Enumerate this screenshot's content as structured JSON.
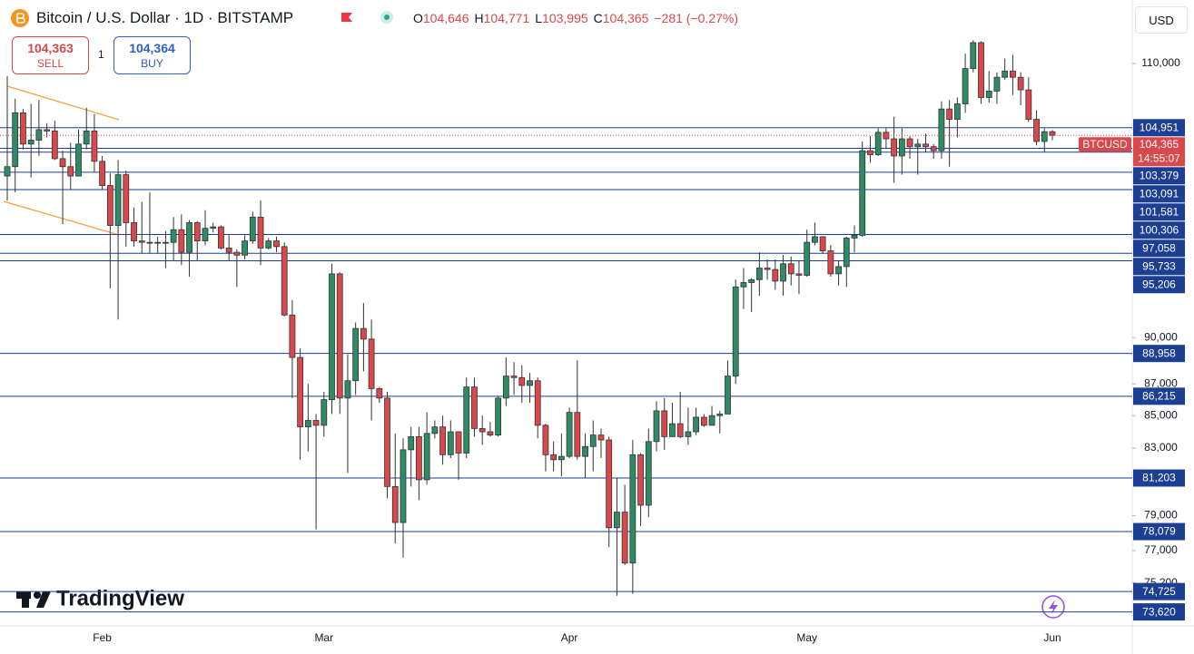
{
  "header": {
    "title": "Bitcoin / U.S. Dollar · 1D · BITSTAMP",
    "ohlc": [
      {
        "key": "O",
        "value": "104,646"
      },
      {
        "key": "H",
        "value": "104,771"
      },
      {
        "key": "L",
        "value": "103,995"
      },
      {
        "key": "C",
        "value": "104,365"
      }
    ],
    "change": "−281 (−0.27%)"
  },
  "trade": {
    "sell": {
      "price": "104,363",
      "label": "SELL"
    },
    "quantity": "1",
    "buy": {
      "price": "104,364",
      "label": "BUY"
    }
  },
  "currency": "USD",
  "brand": "TradingView",
  "chart_data": {
    "type": "candlestick",
    "log_scale": true,
    "up_color": "#2e8b66",
    "down_color": "#d9484b",
    "level_color": "#1c3f94",
    "categories": [
      null,
      null,
      null,
      null,
      null,
      null,
      null,
      null,
      null,
      null,
      null,
      null,
      "Feb",
      null,
      null,
      null,
      null,
      null,
      null,
      null,
      null,
      null,
      null,
      null,
      null,
      null,
      null,
      null,
      null,
      null,
      null,
      null,
      null,
      null,
      null,
      null,
      null,
      null,
      null,
      null,
      "Mar",
      null,
      null,
      null,
      null,
      null,
      null,
      null,
      null,
      null,
      null,
      null,
      null,
      null,
      null,
      null,
      null,
      null,
      null,
      null,
      null,
      null,
      null,
      null,
      null,
      null,
      null,
      null,
      null,
      null,
      null,
      "Apr",
      null,
      null,
      null,
      null,
      null,
      null,
      null,
      null,
      null,
      null,
      null,
      null,
      null,
      null,
      null,
      null,
      null,
      null,
      null,
      null,
      null,
      null,
      null,
      null,
      null,
      null,
      null,
      null,
      null,
      "May",
      null,
      null,
      null,
      null,
      null,
      null,
      null,
      null,
      null,
      null,
      null,
      null,
      null,
      null,
      null,
      null,
      null,
      null,
      null,
      null,
      null,
      null,
      null,
      null,
      null,
      null,
      null,
      null,
      null,
      null,
      "Jun"
    ],
    "open": [
      101300,
      102000,
      106100,
      103700,
      104000,
      104800,
      104700,
      102600,
      102000,
      101300,
      103700,
      104700,
      102400,
      100600,
      97700,
      101400,
      97900,
      96600,
      96500,
      96500,
      96500,
      96500,
      97400,
      95800,
      97900,
      96600,
      97500,
      97600,
      96100,
      95800,
      95600,
      96600,
      98300,
      96100,
      96600,
      96200,
      91500,
      88700,
      84300,
      84700,
      84400,
      86000,
      94300,
      86100,
      87200,
      90600,
      89900,
      86700,
      86100,
      80700,
      78600,
      82900,
      83700,
      81100,
      83900,
      84300,
      82600,
      84000,
      82700,
      86800,
      84200,
      84000,
      83800,
      86100,
      87500,
      87400,
      86900,
      87200,
      84400,
      82600,
      82300,
      82500,
      85200,
      82500,
      83100,
      83800,
      83500,
      78300,
      79200,
      76300,
      82600,
      79600,
      83400,
      85300,
      83700,
      84500,
      83700,
      84000,
      84900,
      84400,
      85000,
      85100,
      87500,
      93400,
      93700,
      93900,
      94700,
      94600,
      93800,
      95000,
      94300,
      94200,
      96500,
      96900,
      95900,
      94300,
      94800,
      96800,
      97000,
      103200,
      102900,
      104600,
      104100,
      102800,
      104100,
      103500,
      103700,
      103500,
      103200,
      106400,
      105600,
      106800,
      109600,
      111700,
      107300,
      107800,
      108900,
      109400,
      108900,
      107900,
      105600,
      103900,
      104646
    ],
    "high": [
      109000,
      107200,
      106400,
      106800,
      107100,
      105300,
      105500,
      103200,
      103800,
      104800,
      106500,
      106000,
      102800,
      101500,
      102500,
      101700,
      99000,
      99400,
      100100,
      96900,
      97300,
      98300,
      98500,
      98100,
      98000,
      98800,
      97900,
      97700,
      97000,
      96000,
      97000,
      98700,
      99500,
      96800,
      96900,
      96500,
      92500,
      89300,
      87000,
      85100,
      86500,
      95000,
      94400,
      88900,
      91000,
      92300,
      91200,
      86800,
      86500,
      83900,
      83600,
      84300,
      84300,
      85200,
      84700,
      85000,
      84700,
      84000,
      87400,
      87400,
      85000,
      84600,
      86200,
      88700,
      88400,
      88200,
      87700,
      87400,
      84500,
      83400,
      83900,
      85500,
      88500,
      83900,
      84700,
      84200,
      83700,
      81200,
      80800,
      83500,
      82700,
      84200,
      85900,
      86100,
      85800,
      86500,
      85500,
      85500,
      85100,
      85600,
      85300,
      88500,
      93900,
      94700,
      94000,
      95800,
      95300,
      95300,
      95600,
      95500,
      95200,
      97400,
      97900,
      96900,
      96300,
      95200,
      96900,
      97700,
      103900,
      104300,
      104900,
      104900,
      105800,
      104900,
      104300,
      104100,
      104500,
      103700,
      107000,
      107100,
      107300,
      110800,
      111900,
      111800,
      109400,
      109300,
      110400,
      110700,
      109300,
      108900,
      106300,
      104900,
      104771
    ],
    "low": [
      99500,
      100100,
      103300,
      101200,
      102800,
      104200,
      102500,
      97800,
      100300,
      101300,
      103300,
      101600,
      100300,
      93300,
      91200,
      96200,
      96200,
      95700,
      95700,
      95700,
      94700,
      95200,
      94900,
      94100,
      95200,
      96300,
      97200,
      96000,
      95200,
      93400,
      95300,
      96400,
      94900,
      96000,
      95800,
      91400,
      86100,
      82300,
      82800,
      78200,
      83700,
      85100,
      85100,
      81500,
      86300,
      87800,
      84700,
      85800,
      80000,
      77400,
      76600,
      80700,
      79900,
      80800,
      83600,
      82000,
      82400,
      81100,
      82400,
      83700,
      83200,
      83700,
      83700,
      85600,
      86300,
      85800,
      85800,
      83600,
      81600,
      81600,
      81300,
      82400,
      82300,
      81200,
      81600,
      82400,
      77200,
      74500,
      76200,
      74600,
      78400,
      78900,
      82800,
      82900,
      83700,
      83600,
      83200,
      83800,
      84300,
      84400,
      83900,
      85100,
      87000,
      91900,
      91700,
      92800,
      93900,
      93200,
      92800,
      93500,
      92900,
      94100,
      96300,
      95700,
      94100,
      93500,
      93400,
      95800,
      96900,
      102300,
      102800,
      103400,
      100800,
      101400,
      102600,
      101400,
      103100,
      102600,
      102600,
      102000,
      104200,
      106100,
      109300,
      106800,
      106900,
      106800,
      108700,
      107500,
      106700,
      105400,
      103600,
      103100,
      103995
    ],
    "close": [
      102000,
      106100,
      103700,
      104000,
      104800,
      104700,
      102600,
      102000,
      101300,
      103700,
      104700,
      102400,
      100600,
      97700,
      101400,
      97900,
      96600,
      96500,
      96500,
      96500,
      96500,
      97400,
      95800,
      97900,
      96600,
      97500,
      97600,
      96100,
      95800,
      95600,
      96600,
      98300,
      96100,
      96600,
      96200,
      91500,
      88700,
      84300,
      84700,
      84400,
      86000,
      94300,
      86100,
      87200,
      90600,
      89900,
      86700,
      86100,
      80700,
      78600,
      82900,
      83700,
      81100,
      83900,
      84300,
      82600,
      84000,
      82700,
      86800,
      84200,
      84000,
      83800,
      86100,
      87500,
      87400,
      86900,
      87200,
      84400,
      82600,
      82300,
      82500,
      85200,
      82500,
      83100,
      83800,
      83500,
      78300,
      79200,
      76300,
      82600,
      79600,
      83400,
      85300,
      83700,
      84500,
      83700,
      84000,
      84900,
      84400,
      85000,
      85100,
      87500,
      93400,
      93700,
      93900,
      94700,
      94600,
      93800,
      95000,
      94300,
      94200,
      96500,
      96900,
      95900,
      94300,
      94800,
      96800,
      97000,
      103200,
      102900,
      104600,
      104100,
      102800,
      104100,
      103500,
      103700,
      103500,
      103200,
      106400,
      105600,
      106800,
      109600,
      111700,
      107300,
      107800,
      108900,
      109400,
      108900,
      107900,
      105600,
      103900,
      104646,
      104365
    ],
    "ylim": [
      72870,
      115240
    ],
    "yticks": [
      {
        "value": 110000,
        "label": "110,000"
      },
      {
        "value": 90000,
        "label": "90,000"
      },
      {
        "value": 87000,
        "label": "87,000"
      },
      {
        "value": 85000,
        "label": "85,000"
      },
      {
        "value": 83000,
        "label": "83,000"
      },
      {
        "value": 79000,
        "label": "79,000"
      },
      {
        "value": 77000,
        "label": "77,000"
      },
      {
        "value": 75200,
        "label": "75,200"
      }
    ],
    "levels": [
      {
        "value": 104951,
        "label": "104,951"
      },
      {
        "value": 103379,
        "label": "103,379"
      },
      {
        "value": 103091,
        "label": "103,091"
      },
      {
        "value": 101581,
        "label": "101,581"
      },
      {
        "value": 100306,
        "label": "100,306"
      },
      {
        "value": 97058,
        "label": "97,058"
      },
      {
        "value": 95733,
        "label": "95,733"
      },
      {
        "value": 95206,
        "label": "95,206"
      },
      {
        "value": 88958,
        "label": "88,958"
      },
      {
        "value": 86215,
        "label": "86,215"
      },
      {
        "value": 81203,
        "label": "81,203"
      },
      {
        "value": 78079,
        "label": "78,079"
      },
      {
        "value": 74725,
        "label": "74,725"
      },
      {
        "value": 73620,
        "label": "73,620"
      }
    ],
    "last_price": {
      "value": 104365,
      "label": "104,365"
    },
    "symbol": "BTCUSD",
    "countdown": "14:55:07"
  }
}
